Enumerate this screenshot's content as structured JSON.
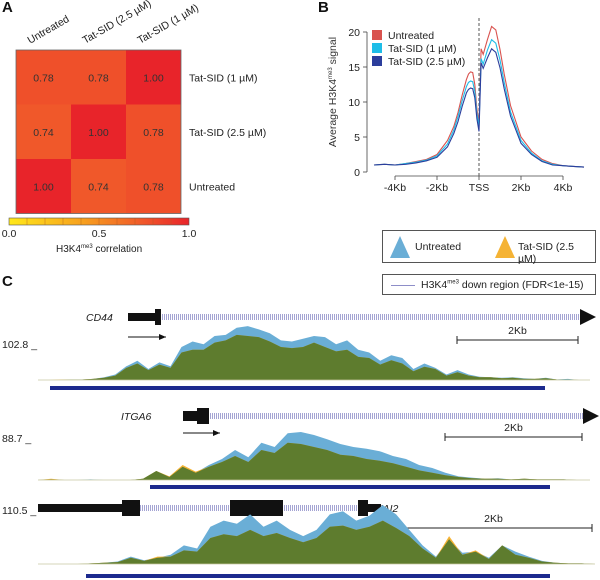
{
  "panels": {
    "a": {
      "letter": "A"
    },
    "b": {
      "letter": "B"
    },
    "c": {
      "letter": "C"
    }
  },
  "chart_data": [
    {
      "id": "A",
      "type": "heatmap",
      "title": "",
      "columns": [
        "Untreated",
        "Tat-SID (2.5 µM)",
        "Tat-SID (1 µM)"
      ],
      "rows": [
        "Tat-SID (1 µM)",
        "Tat-SID (2.5 µM)",
        "Untreated"
      ],
      "values": [
        [
          0.78,
          0.78,
          1.0
        ],
        [
          0.74,
          1.0,
          0.78
        ],
        [
          1.0,
          0.74,
          0.78
        ]
      ],
      "value_labels": [
        [
          "0.78",
          "0.78",
          "1.00"
        ],
        [
          "0.74",
          "1.00",
          "0.78"
        ],
        [
          "1.00",
          "0.74",
          "0.78"
        ]
      ],
      "colorbar": {
        "min": 0.0,
        "max": 1.0,
        "ticks": [
          "0.0",
          "0.5",
          "1.0"
        ],
        "label": "H3K4",
        "label_sup": "me3",
        "label_suffix": " correlation",
        "colors": [
          "#ffe81a",
          "#f7a21e",
          "#f0562a",
          "#e8242a"
        ]
      }
    },
    {
      "id": "B",
      "type": "line",
      "ylabel": "Average H3K4",
      "ylabel_sup": "me3",
      "ylabel_suffix": " signal",
      "xlabel": "",
      "ylim": [
        0,
        20
      ],
      "xlim": [
        -5,
        5
      ],
      "yticks": [
        0,
        5,
        10,
        15,
        20
      ],
      "xticks": [
        {
          "value": -4,
          "label": "-4Kb"
        },
        {
          "value": -2,
          "label": "-2Kb"
        },
        {
          "value": 0,
          "label": "TSS"
        },
        {
          "value": 2,
          "label": "2Kb"
        },
        {
          "value": 4,
          "label": "4Kb"
        }
      ],
      "vline_at": 0,
      "legend_position": "top-left",
      "x": [
        -5,
        -4.5,
        -4,
        -3.5,
        -3,
        -2.5,
        -2,
        -1.5,
        -1.2,
        -1,
        -0.8,
        -0.6,
        -0.5,
        -0.4,
        -0.3,
        -0.2,
        -0.1,
        0,
        0.1,
        0.2,
        0.4,
        0.6,
        0.8,
        1,
        1.2,
        1.5,
        2,
        2.5,
        3,
        3.5,
        4,
        4.5,
        5
      ],
      "series": [
        {
          "name": "Untreated",
          "color": "#d9534f",
          "values": [
            1.0,
            1.1,
            1.0,
            1.2,
            1.5,
            1.8,
            2.5,
            4.5,
            6.5,
            8.5,
            11,
            13.2,
            14.0,
            14.3,
            14.2,
            12.5,
            9.0,
            7.0,
            17.6,
            16.8,
            18.9,
            20.8,
            20.3,
            17.5,
            14.0,
            9.5,
            5.0,
            3.0,
            1.8,
            1.2,
            0.9,
            0.8,
            0.7
          ]
        },
        {
          "name": "Tat-SID (1 µM)",
          "color": "#1ebde8",
          "values": [
            1.0,
            1.1,
            1.0,
            1.2,
            1.4,
            1.7,
            2.3,
            4.0,
            6.0,
            7.9,
            10.2,
            12.2,
            12.8,
            13.0,
            12.9,
            11.5,
            8.3,
            6.5,
            16.2,
            15.4,
            17.4,
            18.9,
            18.4,
            16.0,
            12.8,
            8.6,
            4.5,
            2.7,
            1.6,
            1.1,
            0.9,
            0.8,
            0.7
          ]
        },
        {
          "name": "Tat-SID (2.5 µM)",
          "color": "#2c3e9c",
          "values": [
            1.0,
            1.1,
            1.0,
            1.1,
            1.3,
            1.6,
            2.1,
            3.6,
            5.5,
            7.2,
            9.4,
            11.3,
            11.8,
            12.0,
            11.9,
            10.6,
            7.6,
            5.8,
            15.6,
            14.8,
            16.3,
            17.6,
            17.1,
            14.9,
            11.9,
            8.0,
            4.1,
            2.5,
            1.5,
            1.0,
            0.9,
            0.8,
            0.7
          ]
        }
      ]
    },
    {
      "id": "C",
      "type": "area",
      "legend": {
        "series": [
          {
            "name": "Untreated",
            "color": "#6aaed6"
          },
          {
            "name": "Tat-SID (2.5 µM)",
            "color": "#f5b335"
          }
        ],
        "region": {
          "label_prefix": "H3K4",
          "label_sup": "me3",
          "label_suffix": " down region (FDR<1e-15)",
          "color": "#8e8ec8"
        }
      },
      "overlap_color": "#5e7c2e",
      "region_bar_color": "#1c2a8e",
      "scale_bar_label": "2Kb",
      "tracks": [
        {
          "gene": "CD44",
          "ymax_label": "102.8",
          "strand": "+",
          "untreated": [
            0,
            0,
            0,
            0.01,
            0.01,
            0.02,
            0.05,
            0.1,
            0.25,
            0.35,
            0.2,
            0.32,
            0.25,
            0.6,
            0.7,
            0.65,
            0.8,
            0.82,
            0.95,
            0.98,
            0.92,
            0.85,
            0.72,
            0.7,
            0.75,
            0.8,
            0.78,
            0.65,
            0.72,
            0.55,
            0.5,
            0.35,
            0.45,
            0.4,
            0.2,
            0.3,
            0.22,
            0.1,
            0.18,
            0.1,
            0.06,
            0.05,
            0.04,
            0.05,
            0.03,
            0.02,
            0.04,
            0.01,
            0.02,
            0,
            0
          ],
          "treated": [
            0,
            0,
            0.01,
            0.01,
            0.01,
            0.02,
            0.04,
            0.08,
            0.22,
            0.3,
            0.18,
            0.28,
            0.22,
            0.5,
            0.55,
            0.55,
            0.68,
            0.72,
            0.82,
            0.8,
            0.78,
            0.7,
            0.6,
            0.58,
            0.6,
            0.68,
            0.6,
            0.52,
            0.55,
            0.42,
            0.4,
            0.28,
            0.36,
            0.3,
            0.16,
            0.24,
            0.2,
            0.08,
            0.14,
            0.08,
            0.05,
            0.05,
            0.03,
            0.04,
            0.02,
            0.02,
            0.03,
            0.01,
            0.01,
            0,
            0
          ]
        },
        {
          "gene": "ITGA6",
          "ymax_label": "88.7",
          "strand": "+",
          "untreated": [
            0,
            0.01,
            0,
            0,
            0.01,
            0,
            0,
            0,
            0.02,
            0.15,
            0.05,
            0.22,
            0.12,
            0.25,
            0.35,
            0.5,
            0.38,
            0.62,
            0.55,
            0.78,
            0.8,
            0.75,
            0.68,
            0.6,
            0.55,
            0.52,
            0.48,
            0.4,
            0.35,
            0.25,
            0.2,
            0.12,
            0.06,
            0.04,
            0.02,
            0.03,
            0.01,
            0.02,
            0.01,
            0.01,
            0.01,
            0,
            0
          ],
          "treated": [
            0,
            0.02,
            0,
            0,
            0,
            0,
            0,
            0,
            0.02,
            0.15,
            0.06,
            0.25,
            0.14,
            0.22,
            0.3,
            0.4,
            0.3,
            0.5,
            0.45,
            0.62,
            0.6,
            0.55,
            0.5,
            0.42,
            0.4,
            0.35,
            0.32,
            0.28,
            0.22,
            0.16,
            0.12,
            0.08,
            0.05,
            0.03,
            0.02,
            0.02,
            0.01,
            0.02,
            0.01,
            0.01,
            0.01,
            0,
            0
          ]
        },
        {
          "gene": "SNAI2",
          "ymax_label": "110.5",
          "strand": "-",
          "untreated": [
            0,
            0,
            0,
            0,
            0.01,
            0.02,
            0.04,
            0.12,
            0.06,
            0.1,
            0.15,
            0.3,
            0.25,
            0.6,
            0.7,
            0.65,
            0.8,
            0.6,
            0.7,
            0.55,
            0.45,
            0.55,
            0.8,
            0.85,
            0.7,
            0.78,
            0.95,
            0.8,
            0.55,
            0.3,
            0.12,
            0.4,
            0.18,
            0.2,
            0.1,
            0.3,
            0.2,
            0.12,
            0.05,
            0.02,
            0.01,
            0.01,
            0
          ],
          "treated": [
            0,
            0,
            0,
            0,
            0.01,
            0.02,
            0.03,
            0.1,
            0.05,
            0.12,
            0.12,
            0.22,
            0.2,
            0.42,
            0.48,
            0.45,
            0.55,
            0.45,
            0.5,
            0.42,
            0.35,
            0.42,
            0.6,
            0.62,
            0.55,
            0.6,
            0.7,
            0.58,
            0.45,
            0.25,
            0.1,
            0.45,
            0.15,
            0.22,
            0.08,
            0.3,
            0.15,
            0.1,
            0.04,
            0.02,
            0.01,
            0.01,
            0
          ]
        }
      ]
    }
  ]
}
